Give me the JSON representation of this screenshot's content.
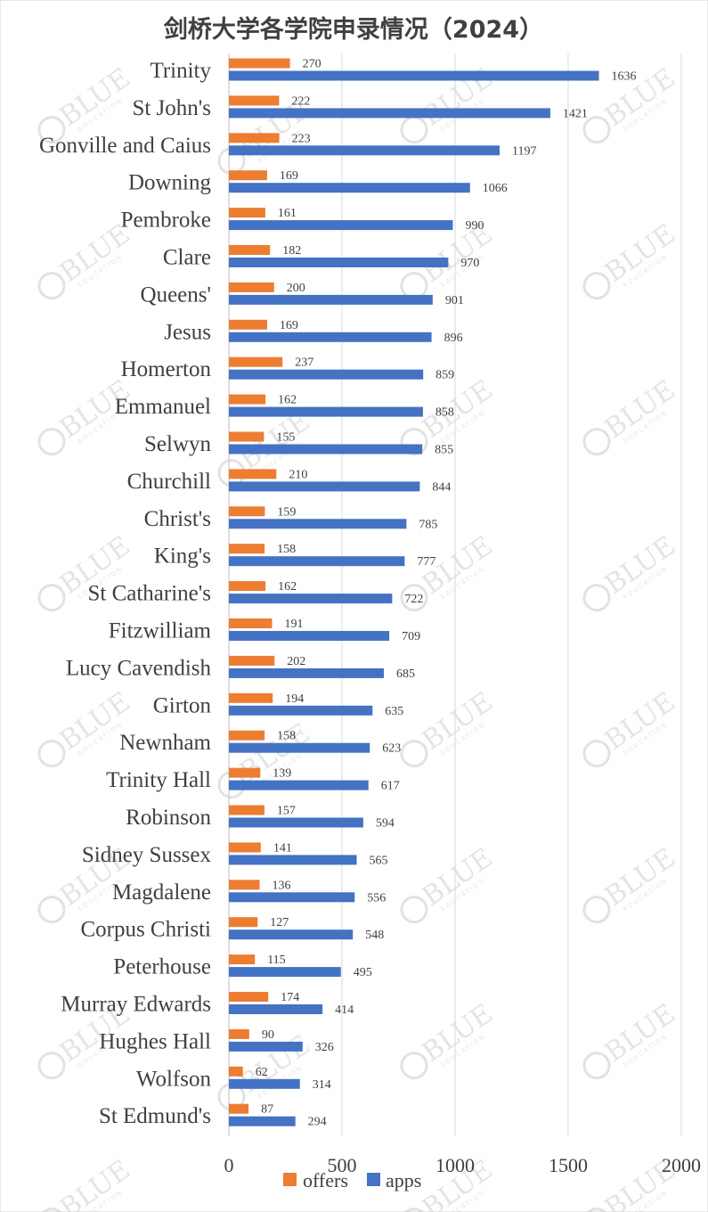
{
  "colors": {
    "offers": "#ed7d31",
    "apps": "#4472c4",
    "text": "#404040",
    "grid": "#d9d9d9",
    "watermark": "#cfcfcf"
  },
  "watermark": {
    "text": "BLUE",
    "sub": "EDUCATION"
  },
  "chart_data": {
    "type": "bar",
    "orientation": "horizontal",
    "title": "剑桥大学各学院申录情况（2024）",
    "xlabel": "",
    "ylabel": "",
    "xlim": [
      0,
      2000
    ],
    "x_ticks": [
      0,
      500,
      1000,
      1500,
      2000
    ],
    "x_tick_labels": [
      "0",
      "500",
      "1000",
      "1500",
      "2000"
    ],
    "grid": true,
    "legend_position": "bottom",
    "categories": [
      "Trinity",
      "St John's",
      "Gonville and Caius",
      "Downing",
      "Pembroke",
      "Clare",
      "Queens'",
      "Jesus",
      "Homerton",
      "Emmanuel",
      "Selwyn",
      "Churchill",
      "Christ's",
      "King's",
      "St Catharine's",
      "Fitzwilliam",
      "Lucy Cavendish",
      "Girton",
      "Newnham",
      "Trinity Hall",
      "Robinson",
      "Sidney Sussex",
      "Magdalene",
      "Corpus Christi",
      "Peterhouse",
      "Murray Edwards",
      "Hughes Hall",
      "Wolfson",
      "St Edmund's"
    ],
    "series": [
      {
        "name": "offers",
        "values": [
          270,
          222,
          223,
          169,
          161,
          182,
          200,
          169,
          237,
          162,
          155,
          210,
          159,
          158,
          162,
          191,
          202,
          194,
          158,
          139,
          157,
          141,
          136,
          127,
          115,
          174,
          90,
          62,
          87
        ]
      },
      {
        "name": "apps",
        "values": [
          1636,
          1421,
          1197,
          1066,
          990,
          970,
          901,
          896,
          859,
          858,
          855,
          844,
          785,
          777,
          722,
          709,
          685,
          635,
          623,
          617,
          594,
          565,
          556,
          548,
          495,
          414,
          326,
          314,
          294
        ]
      }
    ]
  }
}
